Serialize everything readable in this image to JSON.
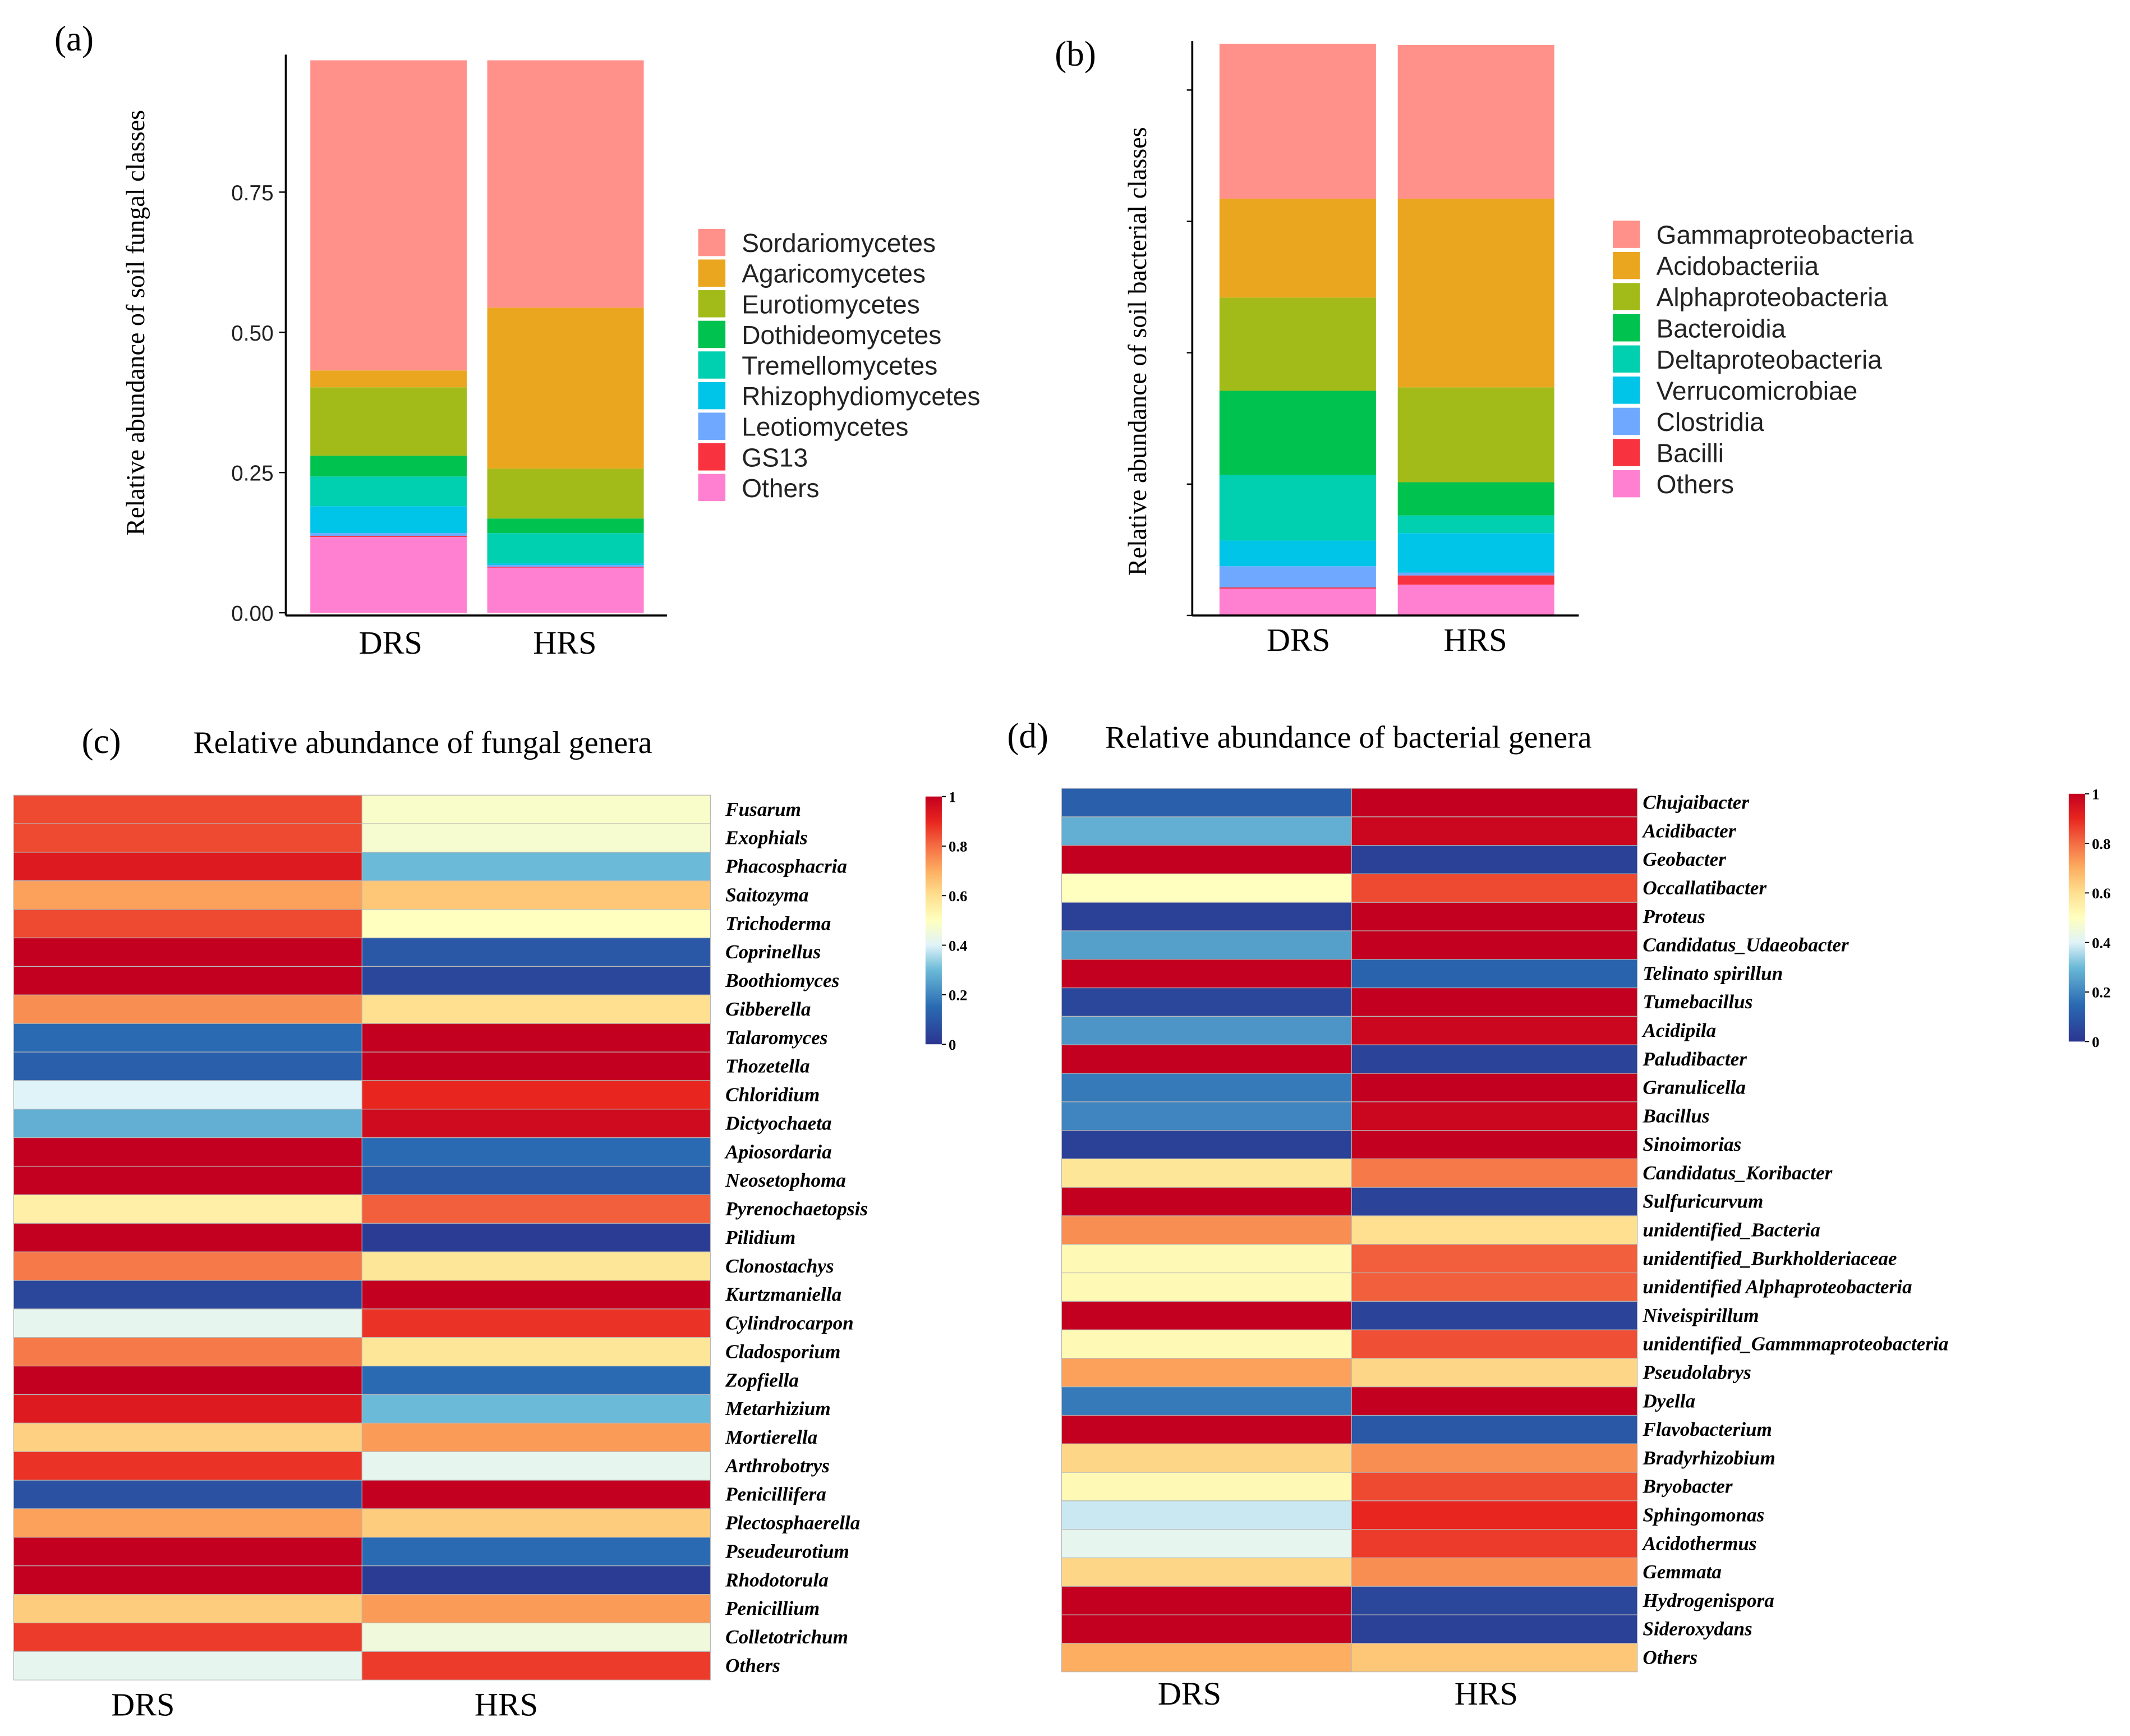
{
  "chart_data": [
    {
      "panel": "(a)",
      "type": "bar",
      "stacked": true,
      "title": "",
      "xlabel": "",
      "ylabel": "Relative abundance of soil fungal classes",
      "categories": [
        "DRS",
        "HRS"
      ],
      "ylim": [
        0,
        1
      ],
      "yticks": [
        "0.00",
        "0.25",
        "0.50",
        "0.75"
      ],
      "ytick_values": [
        0,
        0.25,
        0.5,
        0.75
      ],
      "legend_position": "right",
      "series": [
        {
          "name": "Others",
          "color": "#ff80d0",
          "values": [
            0.135,
            0.081
          ]
        },
        {
          "name": "GS13",
          "color": "#f8333f",
          "values": [
            0.002,
            0.001
          ]
        },
        {
          "name": "Leotiomycetes",
          "color": "#6fa8ff",
          "values": [
            0.005,
            0.003
          ]
        },
        {
          "name": "Rhizophydiomycetes",
          "color": "#00c4e8",
          "values": [
            0.048,
            0.003
          ]
        },
        {
          "name": "Tremellomycetes",
          "color": "#00cfb0",
          "values": [
            0.053,
            0.054
          ]
        },
        {
          "name": "Dothideomycetes",
          "color": "#00c24f",
          "values": [
            0.037,
            0.026
          ]
        },
        {
          "name": "Eurotiomycetes",
          "color": "#a3bb18",
          "values": [
            0.122,
            0.089
          ]
        },
        {
          "name": "Agaricomycetes",
          "color": "#eaa61f",
          "values": [
            0.03,
            0.287
          ]
        },
        {
          "name": "Sordariomycetes",
          "color": "#ff918a",
          "values": [
            0.553,
            0.441
          ]
        }
      ],
      "legend_order": [
        "Sordariomycetes",
        "Agaricomycetes",
        "Eurotiomycetes",
        "Dothideomycetes",
        "Tremellomycetes",
        "Rhizophydiomycetes",
        "Leotiomycetes",
        "GS13",
        "Others"
      ]
    },
    {
      "panel": "(b)",
      "type": "bar",
      "stacked": true,
      "title": "",
      "xlabel": "",
      "ylabel": "Relative abundance of soil bacterial classes",
      "categories": [
        "DRS",
        "HRS"
      ],
      "ylim": [
        0,
        1
      ],
      "yticks_unlabeled": 5,
      "legend_position": "right",
      "series": [
        {
          "name": "Others",
          "color": "#ff80d0",
          "values": [
            0.047,
            0.054
          ]
        },
        {
          "name": "Bacilli",
          "color": "#f8333f",
          "values": [
            0.002,
            0.016
          ]
        },
        {
          "name": "Clostridia",
          "color": "#6fa8ff",
          "values": [
            0.037,
            0.005
          ]
        },
        {
          "name": "Verrucomicrobiae",
          "color": "#00c4e8",
          "values": [
            0.045,
            0.069
          ]
        },
        {
          "name": "Deltaproteobacteria",
          "color": "#00cfb0",
          "values": [
            0.115,
            0.031
          ]
        },
        {
          "name": "Bacteroidia",
          "color": "#00c24f",
          "values": [
            0.147,
            0.058
          ]
        },
        {
          "name": "Alphaproteobacteria",
          "color": "#a3bb18",
          "values": [
            0.163,
            0.166
          ]
        },
        {
          "name": "Acidobacteriia",
          "color": "#eaa61f",
          "values": [
            0.173,
            0.33
          ]
        },
        {
          "name": "Gammaproteobacteria",
          "color": "#ff918a",
          "values": [
            0.271,
            0.269
          ]
        }
      ],
      "legend_order": [
        "Gammaproteobacteria",
        "Acidobacteriia",
        "Alphaproteobacteria",
        "Bacteroidia",
        "Deltaproteobacteria",
        "Verrucomicrobiae",
        "Clostridia",
        "Bacilli",
        "Others"
      ]
    },
    {
      "panel": "(c)",
      "type": "heatmap",
      "title": "Relative abundance of fungal genera",
      "columns": [
        "DRS",
        "HRS"
      ],
      "colorbar_ticks": [
        "1",
        "0.8",
        "0.6",
        "0.4",
        "0.2",
        "0"
      ],
      "colorbar_range": [
        0,
        1
      ],
      "rows": [
        "Fusarum",
        "Exophials",
        "Phacosphacria",
        "Saitozyma",
        "Trichoderma",
        "Coprinellus",
        "Boothiomyces",
        "Gibberella",
        "Talaromyces",
        "Thozetella",
        "Chloridium",
        "Dictyochaeta",
        "Apiosordaria",
        "Neosetophoma",
        "Pyrenochaetopsis",
        "Pilidium",
        "Clonostachys",
        "Kurtzmaniella",
        "Cylindrocarpon",
        "Cladosporium",
        "Zopfiella",
        "Metarhizium",
        "Mortierella",
        "Arthrobotrys",
        "Penicillifera",
        "Plectosphaerella",
        "Pseudeurotium",
        "Rhodotorula",
        "Penicillium",
        "Colletotrichum",
        "Others"
      ],
      "values": [
        [
          0.85,
          0.48
        ],
        [
          0.85,
          0.47
        ],
        [
          0.93,
          0.3
        ],
        [
          0.72,
          0.65
        ],
        [
          0.85,
          0.5
        ],
        [
          1,
          0.1
        ],
        [
          1,
          0.05
        ],
        [
          0.75,
          0.6
        ],
        [
          0.15,
          1
        ],
        [
          0.12,
          1
        ],
        [
          0.4,
          0.9
        ],
        [
          0.28,
          0.97
        ],
        [
          1,
          0.15
        ],
        [
          1,
          0.1
        ],
        [
          0.55,
          0.82
        ],
        [
          1,
          0.02
        ],
        [
          0.78,
          0.58
        ],
        [
          0.05,
          1
        ],
        [
          0.42,
          0.88
        ],
        [
          0.78,
          0.58
        ],
        [
          1,
          0.15
        ],
        [
          0.93,
          0.3
        ],
        [
          0.63,
          0.73
        ],
        [
          0.88,
          0.42
        ],
        [
          0.08,
          1
        ],
        [
          0.72,
          0.64
        ],
        [
          1,
          0.15
        ],
        [
          1,
          0.02
        ],
        [
          0.64,
          0.73
        ],
        [
          0.87,
          0.45
        ],
        [
          0.42,
          0.87
        ]
      ]
    },
    {
      "panel": "(d)",
      "type": "heatmap",
      "title": "Relative abundance of bacterial genera",
      "columns": [
        "DRS",
        "HRS"
      ],
      "colorbar_ticks": [
        "1",
        "0.8",
        "0.6",
        "0.4",
        "0.2",
        "0"
      ],
      "colorbar_range": [
        0,
        1
      ],
      "rows": [
        "Chujaibacter",
        "Acidibacter",
        "Geobacter",
        "Occallatibacter",
        "Proteus",
        "Candidatus_Udaeobacter",
        "Telinato spirillun",
        "Tumebacillus",
        "Acidipila",
        "Paludibacter",
        "Granulicella",
        "Bacillus",
        "Sinoimorias",
        "Candidatus_Koribacter",
        "Sulfuricurvum",
        "unidentified_Bacteria",
        "unidentified_Burkholderiaceae",
        "unidentified Alphaproteobacteria",
        "Niveispirillum",
        "unidentified_Gammmaproteobacteria",
        "Pseudolabrys",
        "Dyella",
        "Flavobacterium",
        "Bradyrhizobium",
        "Bryobacter",
        "Sphingomonas",
        "Acidothermus",
        "Gemmata",
        "Hydrogenispora",
        "Sideroxydans",
        "Others"
      ],
      "values": [
        [
          0.12,
          1
        ],
        [
          0.28,
          0.98
        ],
        [
          1,
          0.03
        ],
        [
          0.5,
          0.85
        ],
        [
          0.03,
          1
        ],
        [
          0.25,
          1
        ],
        [
          1,
          0.13
        ],
        [
          0.05,
          1
        ],
        [
          0.23,
          0.98
        ],
        [
          1,
          0.04
        ],
        [
          0.18,
          1
        ],
        [
          0.2,
          0.98
        ],
        [
          0.03,
          1
        ],
        [
          0.58,
          0.78
        ],
        [
          1,
          0.04
        ],
        [
          0.75,
          0.6
        ],
        [
          0.52,
          0.82
        ],
        [
          0.52,
          0.82
        ],
        [
          1,
          0.04
        ],
        [
          0.52,
          0.84
        ],
        [
          0.72,
          0.62
        ],
        [
          0.18,
          1
        ],
        [
          1,
          0.1
        ],
        [
          0.62,
          0.75
        ],
        [
          0.52,
          0.85
        ],
        [
          0.38,
          0.9
        ],
        [
          0.42,
          0.87
        ],
        [
          0.62,
          0.75
        ],
        [
          1,
          0.05
        ],
        [
          1,
          0.03
        ],
        [
          0.7,
          0.65
        ]
      ]
    }
  ]
}
